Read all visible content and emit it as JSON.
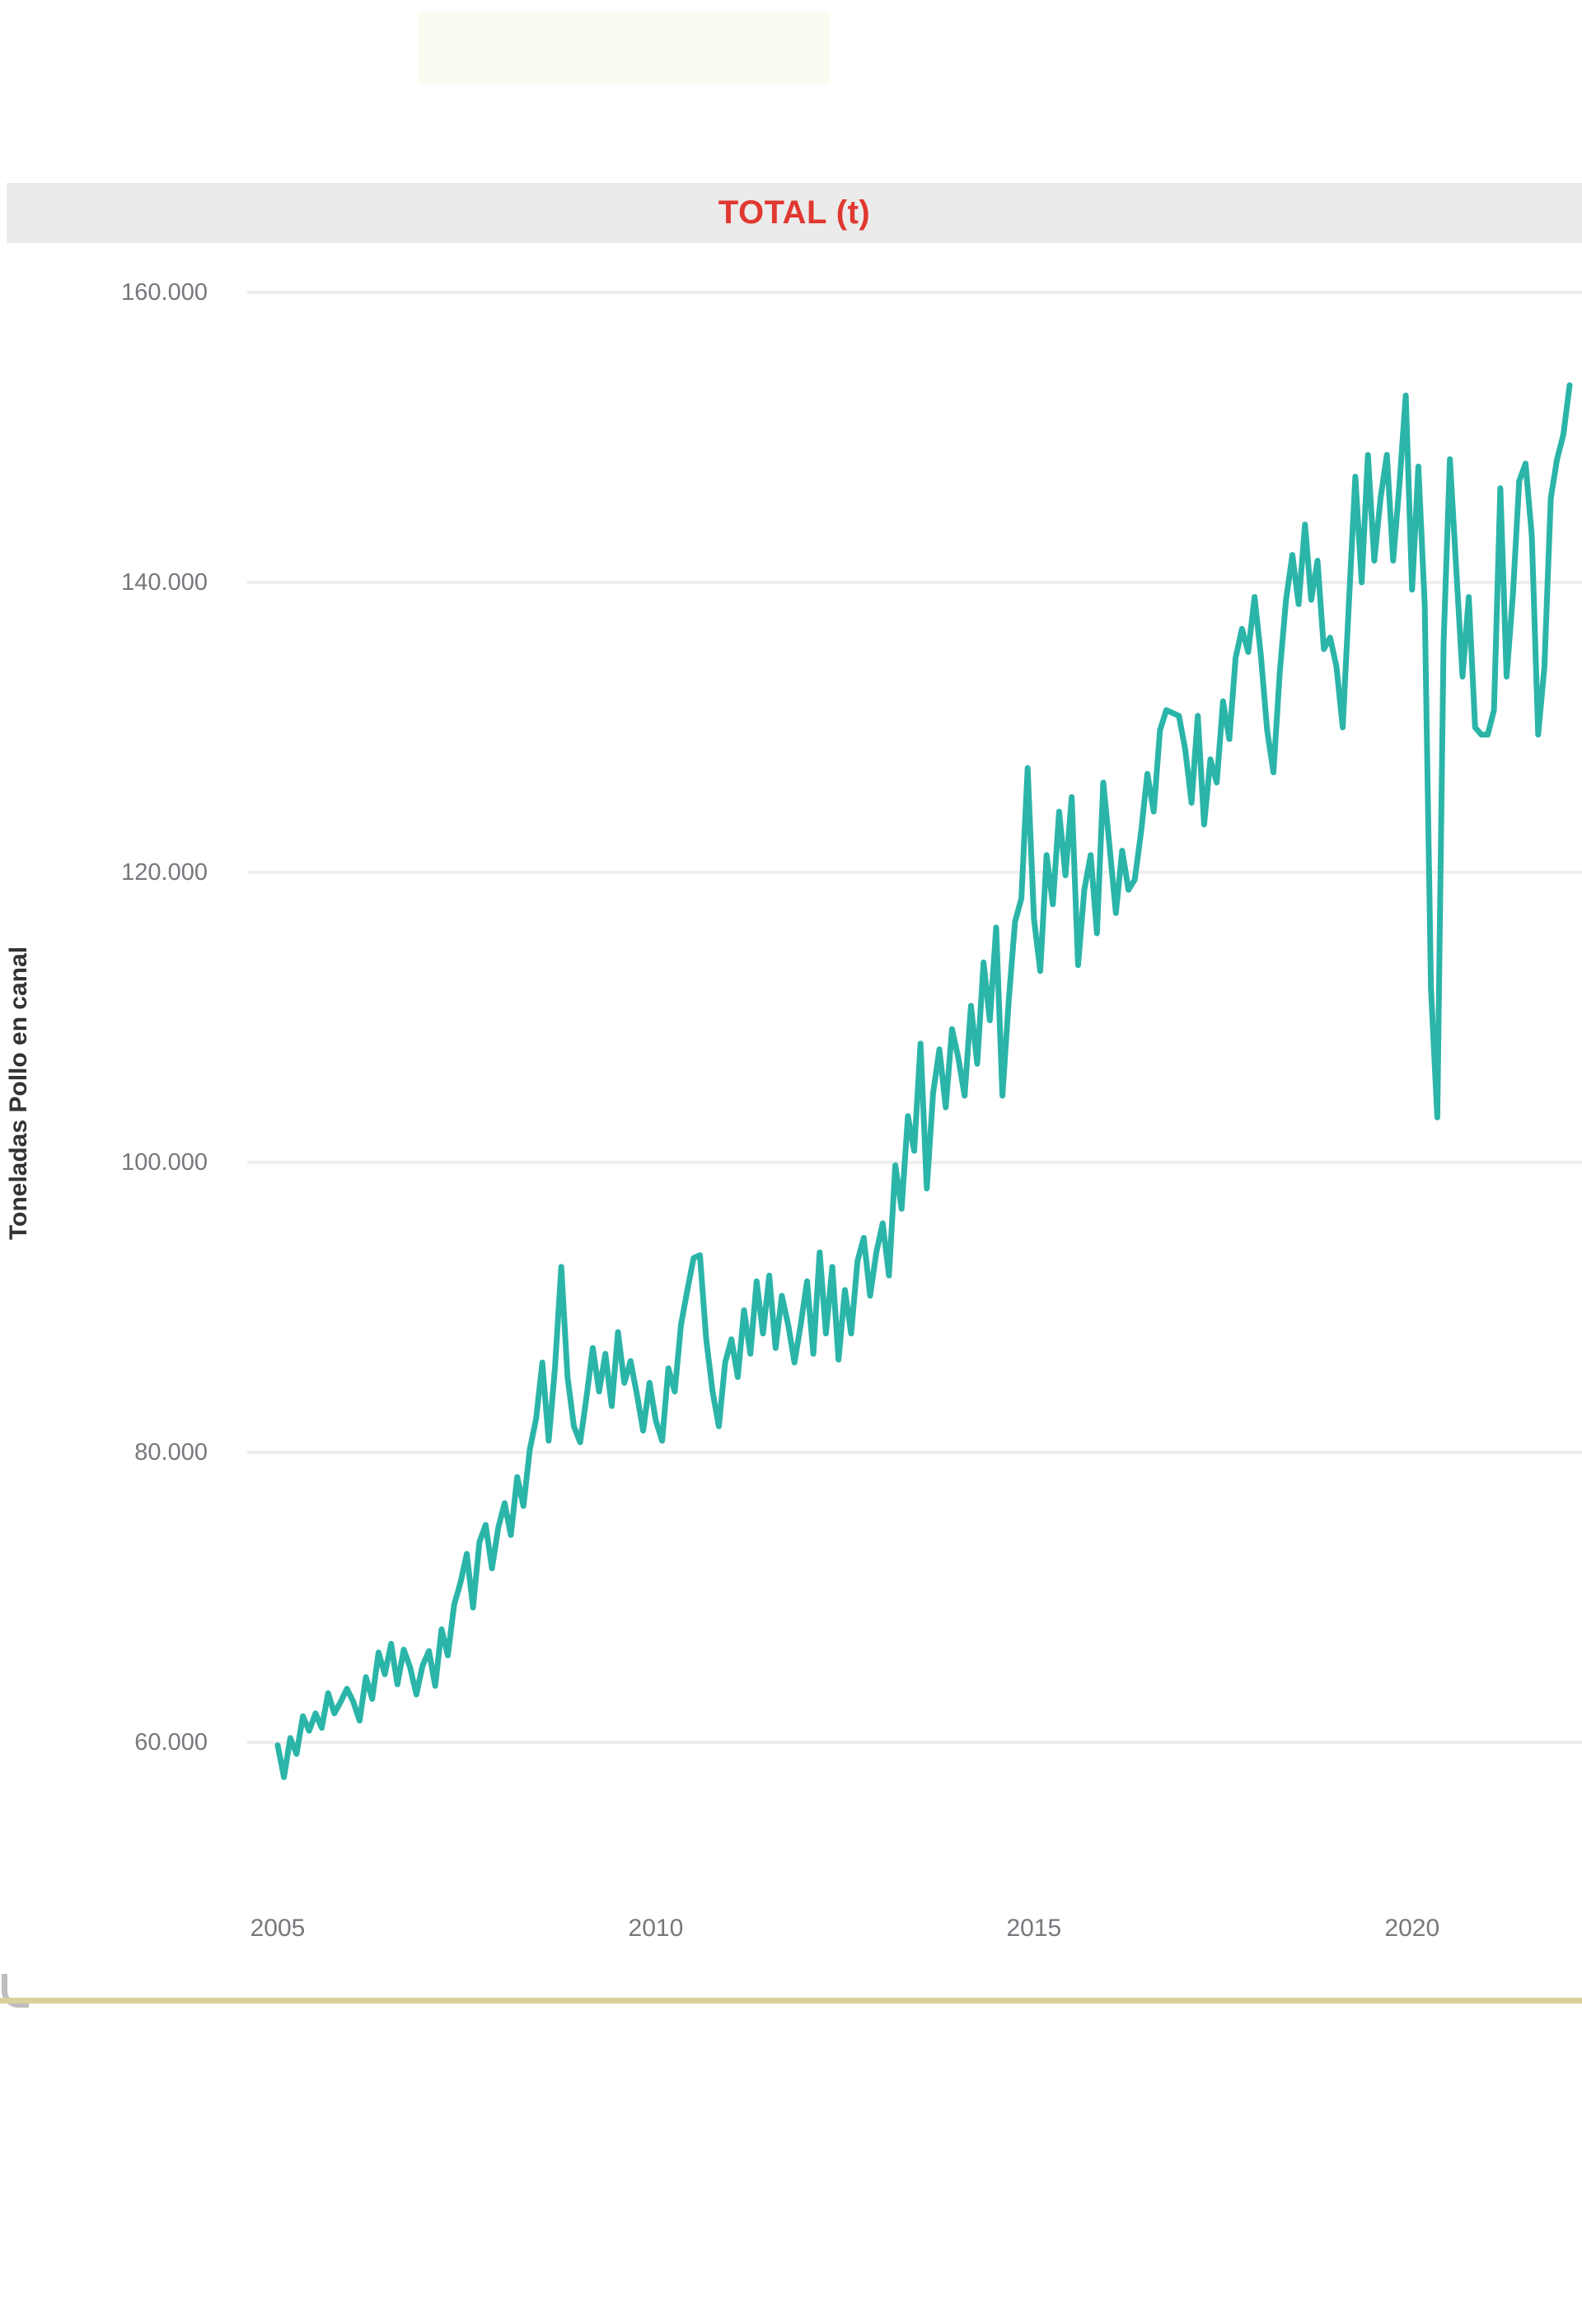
{
  "page": {
    "background": "#ffffff"
  },
  "title_band": {
    "label": "TOTAL (t)",
    "text_color": "#e03830",
    "band_color": "#ebebeb"
  },
  "y_axis": {
    "title": "Toneladas Pollo en canal",
    "tick_labels": [
      "160.000",
      "140.000",
      "120.000",
      "100.000",
      "80.000",
      "60.000"
    ],
    "tick_values": [
      160000,
      140000,
      120000,
      100000,
      80000,
      60000
    ]
  },
  "x_axis": {
    "tick_labels": [
      "2005",
      "2010",
      "2015",
      "2020"
    ],
    "tick_years": [
      2005,
      2010,
      2015,
      2020
    ]
  },
  "chart_data": {
    "type": "line",
    "title": "TOTAL (t)",
    "ylabel": "Toneladas Pollo en canal",
    "xlabel": "",
    "series_name": "TOTAL (t)",
    "line_color": "#2bb5a9",
    "grid": true,
    "legend": false,
    "frequency": "monthly",
    "x_start": "2005-01",
    "x_end": "2022-02",
    "ylim": [
      52000,
      164000
    ],
    "y_ticks": [
      60000,
      80000,
      100000,
      120000,
      140000,
      160000
    ],
    "x_tick_years": [
      2005,
      2010,
      2015,
      2020
    ],
    "values": [
      59800,
      57600,
      60300,
      59200,
      61800,
      60800,
      62000,
      61000,
      63400,
      62000,
      62800,
      63700,
      62800,
      61500,
      64500,
      63000,
      66200,
      64700,
      66800,
      64000,
      66400,
      65200,
      63300,
      65300,
      66300,
      63900,
      67800,
      66000,
      69500,
      71000,
      73000,
      69300,
      73800,
      75000,
      72000,
      74800,
      76500,
      74300,
      78300,
      76300,
      80200,
      82300,
      86200,
      80800,
      85800,
      92800,
      85200,
      81800,
      80700,
      83800,
      87200,
      84200,
      86800,
      83200,
      88300,
      84800,
      86300,
      84000,
      81500,
      84800,
      82200,
      80800,
      85800,
      84200,
      88800,
      91200,
      93400,
      93600,
      87800,
      84200,
      81800,
      86200,
      87800,
      85200,
      89800,
      86800,
      91800,
      88200,
      92200,
      87200,
      90800,
      88800,
      86200,
      88800,
      91800,
      86800,
      93800,
      88200,
      92800,
      86400,
      91200,
      88200,
      93200,
      94800,
      90800,
      93800,
      95800,
      92200,
      99800,
      96800,
      103200,
      100800,
      108200,
      98200,
      104800,
      107800,
      103800,
      109200,
      107200,
      104600,
      110800,
      106800,
      113800,
      109800,
      116200,
      104600,
      111200,
      116600,
      118200,
      127200,
      116800,
      113200,
      121200,
      117800,
      124200,
      119800,
      125200,
      113600,
      118800,
      121200,
      115800,
      126200,
      121800,
      117200,
      121500,
      118800,
      119500,
      122800,
      126800,
      124200,
      129800,
      131200,
      131000,
      130800,
      128500,
      124800,
      130800,
      123300,
      127800,
      126200,
      131800,
      129200,
      134800,
      136800,
      135200,
      139000,
      135000,
      129800,
      126900,
      133800,
      138800,
      141900,
      138500,
      144000,
      138800,
      141500,
      135400,
      136200,
      134200,
      130000,
      138800,
      147300,
      140000,
      148800,
      141500,
      145800,
      148800,
      141500,
      146800,
      152900,
      139500,
      148000,
      138500,
      112000,
      103100,
      135800,
      148500,
      141000,
      133500,
      139000,
      130000,
      129500,
      129500,
      131200,
      146500,
      133500,
      139200,
      147000,
      148200,
      143200,
      129500,
      134200,
      145800,
      148500,
      150200,
      153600
    ]
  }
}
